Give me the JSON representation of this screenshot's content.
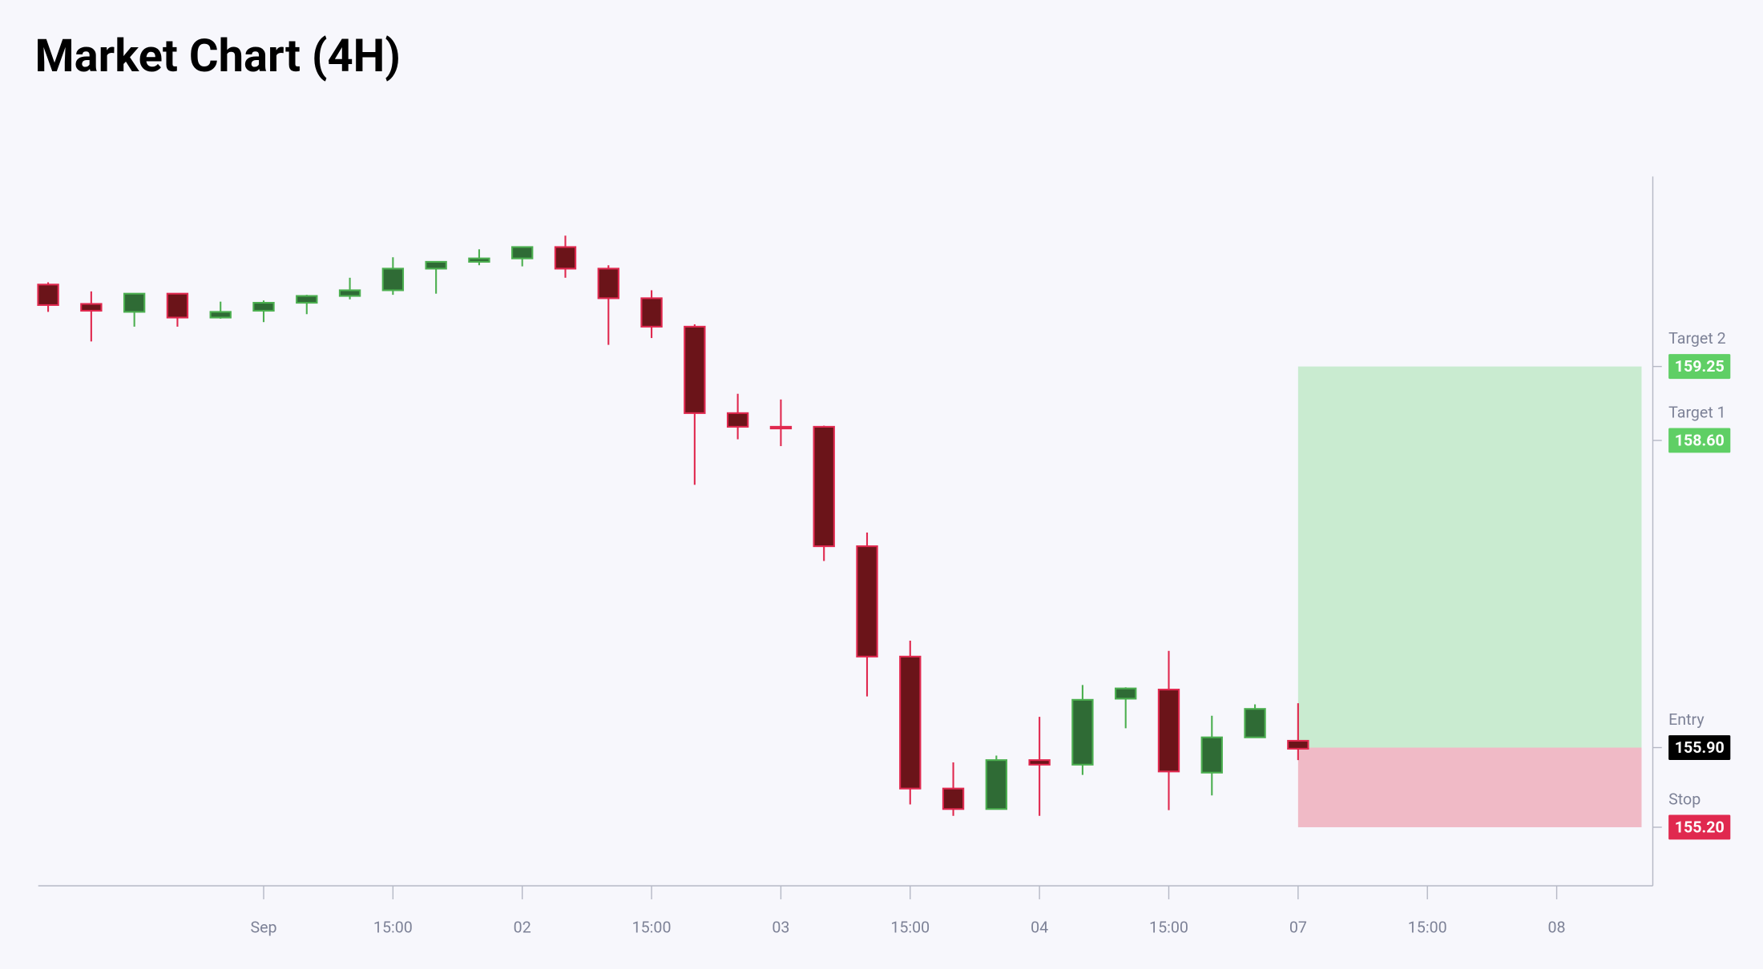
{
  "chart_data": {
    "type": "candlestick",
    "title": "Market Chart (4H)",
    "x": [
      0,
      1,
      2,
      3,
      4,
      5,
      6,
      7,
      8,
      9,
      10,
      11,
      12,
      13,
      14,
      15,
      16,
      17,
      18,
      19,
      20,
      21,
      22,
      23,
      24,
      25,
      26,
      27,
      28,
      29
    ],
    "open": [
      159.97,
      159.8,
      159.73,
      159.89,
      159.68,
      159.74,
      159.81,
      159.87,
      159.92,
      160.11,
      160.17,
      160.2,
      160.3,
      160.11,
      159.85,
      159.6,
      158.84,
      158.72,
      158.72,
      157.67,
      156.7,
      155.54,
      155.36,
      155.79,
      155.75,
      156.33,
      156.41,
      155.68,
      155.99,
      155.96
    ],
    "high": [
      159.99,
      159.91,
      159.89,
      159.89,
      159.82,
      159.83,
      159.88,
      160.03,
      160.21,
      160.17,
      160.28,
      160.3,
      160.4,
      160.14,
      159.92,
      159.62,
      159.01,
      158.96,
      158.73,
      157.79,
      156.84,
      155.77,
      155.83,
      156.17,
      156.45,
      156.43,
      156.75,
      156.18,
      156.28,
      156.29
    ],
    "low": [
      159.73,
      159.47,
      159.6,
      159.6,
      159.67,
      159.64,
      159.71,
      159.84,
      159.88,
      159.89,
      160.14,
      160.13,
      160.03,
      159.44,
      159.5,
      158.21,
      158.61,
      158.55,
      157.54,
      156.35,
      155.4,
      155.3,
      155.36,
      155.3,
      155.66,
      156.07,
      155.35,
      155.48,
      155.99,
      155.79
    ],
    "close": [
      159.79,
      159.74,
      159.89,
      159.68,
      159.73,
      159.81,
      159.87,
      159.92,
      160.11,
      160.17,
      160.2,
      160.3,
      160.11,
      159.85,
      159.6,
      158.84,
      158.72,
      158.71,
      157.67,
      156.7,
      155.54,
      155.36,
      155.79,
      155.75,
      156.32,
      156.42,
      155.69,
      155.99,
      156.24,
      155.89
    ],
    "up_color": "#2f6b35",
    "up_edge": "#4caf50",
    "down_color": "#6b1419",
    "down_edge": "#e0294f",
    "xlim": [
      -0.23,
      37.23
    ],
    "xticks": [
      {
        "value": 5,
        "label": "Sep"
      },
      {
        "value": 8,
        "label": "15:00"
      },
      {
        "value": 11,
        "label": "02"
      },
      {
        "value": 14,
        "label": "15:00"
      },
      {
        "value": 17,
        "label": "03"
      },
      {
        "value": 20,
        "label": "15:00"
      },
      {
        "value": 23,
        "label": "04"
      },
      {
        "value": 26,
        "label": "15:00"
      },
      {
        "value": 29,
        "label": "07"
      },
      {
        "value": 32,
        "label": "15:00"
      },
      {
        "value": 35,
        "label": "08"
      }
    ],
    "ylim": [
      154.685,
      160.92
    ],
    "levels": [
      {
        "name": "Target 2",
        "value": 159.25,
        "value_label": "159.25",
        "color": "#5fcf65"
      },
      {
        "name": "Target 1",
        "value": 158.6,
        "value_label": "158.60",
        "color": "#5fcf65"
      },
      {
        "name": "Entry",
        "value": 155.9,
        "value_label": "155.90",
        "color": "#000000"
      },
      {
        "name": "Stop",
        "value": 155.2,
        "value_label": "155.20",
        "color": "#e0294f"
      }
    ],
    "profit_zone_color": "#c9ebd0",
    "loss_zone_color": "#f0bac6"
  }
}
